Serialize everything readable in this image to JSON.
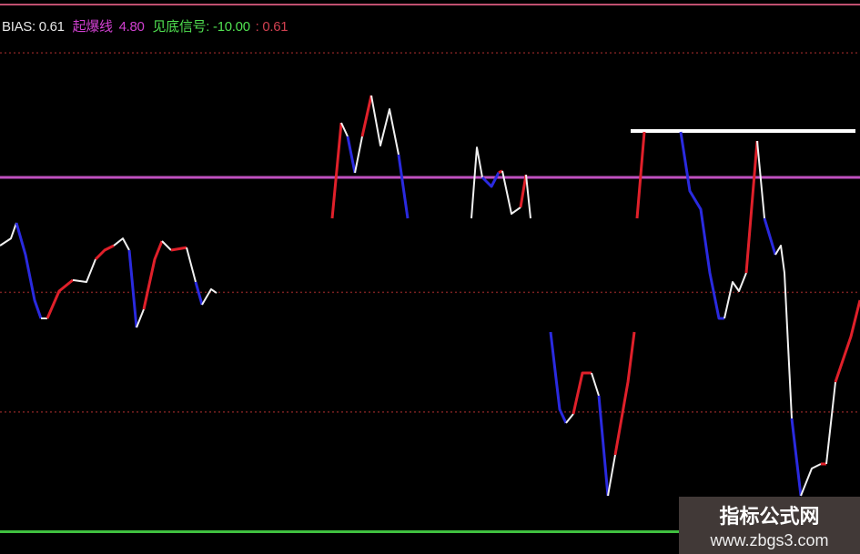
{
  "legend": {
    "bias_label": "BIAS: 0.61",
    "line1_label": "起爆线",
    "line1_value": "4.80",
    "line2_label": "见底信号:",
    "line2_value": "-10.00",
    "extra_value": ": 0.61"
  },
  "watermark": {
    "title": "指标公式网",
    "url": "www.zbgs3.com"
  },
  "colors": {
    "up": "#e0202a",
    "down": "#2a2adf",
    "flat": "#f0f0f0",
    "line1": "#c050c0",
    "line2": "#40c040",
    "grid": "#7a2020",
    "header": "#c05070",
    "bias_text": "#e8e8e8",
    "line1_text": "#d040d0",
    "line2_text": "#50e050",
    "extra_text": "#d04050"
  },
  "chart_data": {
    "type": "line",
    "title": "",
    "xlabel": "",
    "ylabel": "",
    "ylim": [
      -10.3,
      10.6
    ],
    "grid": true,
    "grid_levels": [
      10,
      0,
      -5
    ],
    "reference_lines": [
      {
        "name": "起爆线",
        "value": 4.8,
        "color": "purple"
      },
      {
        "name": "见底信号",
        "value": -10,
        "color": "green"
      }
    ],
    "extra_hline": {
      "value": 6.74,
      "x_range": [
        138.6,
        188
      ],
      "color": "white"
    },
    "segments": [
      {
        "c": "flat",
        "pts": [
          [
            0,
            1.95
          ],
          [
            2.4,
            2.25
          ],
          [
            3.6,
            2.9
          ]
        ]
      },
      {
        "c": "down",
        "pts": [
          [
            3.6,
            2.9
          ],
          [
            5.6,
            1.57
          ],
          [
            7.6,
            -0.33
          ],
          [
            9,
            -1.09
          ]
        ]
      },
      {
        "c": "flat",
        "pts": [
          [
            9,
            -1.09
          ],
          [
            10.4,
            -1.09
          ]
        ]
      },
      {
        "c": "up",
        "pts": [
          [
            10.4,
            -1.09
          ],
          [
            13,
            0.05
          ],
          [
            16,
            0.51
          ]
        ]
      },
      {
        "c": "flat",
        "pts": [
          [
            16,
            0.51
          ],
          [
            19,
            0.43
          ],
          [
            21,
            1.38
          ]
        ]
      },
      {
        "c": "up",
        "pts": [
          [
            21,
            1.38
          ],
          [
            23,
            1.76
          ],
          [
            25,
            1.95
          ]
        ]
      },
      {
        "c": "flat",
        "pts": [
          [
            25,
            1.95
          ],
          [
            27,
            2.25
          ],
          [
            28.4,
            1.76
          ]
        ]
      },
      {
        "c": "down",
        "pts": [
          [
            28.4,
            1.76
          ],
          [
            30,
            -1.47
          ]
        ]
      },
      {
        "c": "flat",
        "pts": [
          [
            30,
            -1.47
          ],
          [
            31.6,
            -0.71
          ]
        ]
      },
      {
        "c": "up",
        "pts": [
          [
            31.6,
            -0.71
          ],
          [
            34,
            1.38
          ],
          [
            35.6,
            2.14
          ]
        ]
      },
      {
        "c": "flat",
        "pts": [
          [
            35.6,
            2.14
          ],
          [
            37.6,
            1.76
          ]
        ]
      },
      {
        "c": "up",
        "pts": [
          [
            37.6,
            1.76
          ],
          [
            41,
            1.87
          ]
        ]
      },
      {
        "c": "flat",
        "pts": [
          [
            41,
            1.87
          ],
          [
            43,
            0.43
          ]
        ]
      },
      {
        "c": "down",
        "pts": [
          [
            43,
            0.43
          ],
          [
            44.4,
            -0.52
          ]
        ]
      },
      {
        "c": "flat",
        "pts": [
          [
            44.4,
            -0.52
          ],
          [
            46.4,
            0.13
          ],
          [
            47.6,
            -0.03
          ]
        ]
      },
      {
        "c": "up",
        "pts": [
          [
            73,
            3.09
          ],
          [
            75,
            7.08
          ]
        ]
      },
      {
        "c": "flat",
        "pts": [
          [
            75,
            7.08
          ],
          [
            76.4,
            6.51
          ]
        ]
      },
      {
        "c": "down",
        "pts": [
          [
            76.4,
            6.51
          ],
          [
            78,
            4.99
          ]
        ]
      },
      {
        "c": "flat",
        "pts": [
          [
            78,
            4.99
          ],
          [
            79.6,
            6.51
          ]
        ]
      },
      {
        "c": "up",
        "pts": [
          [
            79.6,
            6.51
          ],
          [
            81.6,
            8.22
          ]
        ]
      },
      {
        "c": "flat",
        "pts": [
          [
            81.6,
            8.22
          ],
          [
            83.6,
            6.13
          ],
          [
            85.6,
            7.65
          ],
          [
            87.6,
            5.75
          ]
        ]
      },
      {
        "c": "down",
        "pts": [
          [
            87.6,
            5.75
          ],
          [
            89.6,
            3.09
          ]
        ]
      },
      {
        "c": "flat",
        "pts": [
          [
            103.6,
            3.09
          ],
          [
            104.8,
            6.05
          ],
          [
            106,
            4.8
          ]
        ]
      },
      {
        "c": "down",
        "pts": [
          [
            106,
            4.8
          ],
          [
            108,
            4.42
          ],
          [
            109.6,
            5.0
          ]
        ]
      },
      {
        "c": "up",
        "pts": [
          [
            109.6,
            5.0
          ],
          [
            110.4,
            5.07
          ]
        ]
      },
      {
        "c": "flat",
        "pts": [
          [
            110.4,
            5.07
          ],
          [
            112.4,
            3.28
          ],
          [
            114.4,
            3.55
          ]
        ]
      },
      {
        "c": "up",
        "pts": [
          [
            114.4,
            3.55
          ],
          [
            115.6,
            4.91
          ]
        ]
      },
      {
        "c": "flat",
        "pts": [
          [
            115.6,
            4.91
          ],
          [
            116.6,
            3.09
          ]
        ]
      },
      {
        "c": "down",
        "pts": [
          [
            121,
            -1.66
          ],
          [
            123,
            -4.89
          ],
          [
            124.4,
            -5.46
          ]
        ]
      },
      {
        "c": "flat",
        "pts": [
          [
            124.4,
            -5.46
          ],
          [
            126,
            -5.08
          ]
        ]
      },
      {
        "c": "up",
        "pts": [
          [
            126,
            -5.08
          ],
          [
            128,
            -3.37
          ],
          [
            130,
            -3.37
          ]
        ]
      },
      {
        "c": "flat",
        "pts": [
          [
            130,
            -3.37
          ],
          [
            131.6,
            -4.32
          ]
        ]
      },
      {
        "c": "down",
        "pts": [
          [
            131.6,
            -4.32
          ],
          [
            133.6,
            -8.5
          ]
        ]
      },
      {
        "c": "flat",
        "pts": [
          [
            133.6,
            -8.5
          ],
          [
            135.2,
            -6.79
          ]
        ]
      },
      {
        "c": "up",
        "pts": [
          [
            135.2,
            -6.79
          ],
          [
            138,
            -3.75
          ],
          [
            139.4,
            -1.66
          ]
        ]
      },
      {
        "c": "up",
        "pts": [
          [
            140,
            3.09
          ],
          [
            141.6,
            6.7
          ]
        ]
      },
      {
        "c": "down",
        "pts": [
          [
            149.6,
            6.7
          ],
          [
            151.6,
            4.23
          ],
          [
            154,
            3.47
          ],
          [
            156,
            0.81
          ],
          [
            158,
            -1.09
          ],
          [
            159.2,
            -1.09
          ]
        ]
      },
      {
        "c": "flat",
        "pts": [
          [
            159.2,
            -1.09
          ],
          [
            161,
            0.43
          ],
          [
            162.4,
            0.05
          ],
          [
            164,
            0.81
          ]
        ]
      },
      {
        "c": "up",
        "pts": [
          [
            164,
            0.81
          ],
          [
            166.4,
            6.32
          ]
        ]
      },
      {
        "c": "flat",
        "pts": [
          [
            166.4,
            6.32
          ],
          [
            168,
            3.09
          ]
        ]
      },
      {
        "c": "down",
        "pts": [
          [
            168,
            3.09
          ],
          [
            170.4,
            1.57
          ]
        ]
      },
      {
        "c": "flat",
        "pts": [
          [
            170.4,
            1.57
          ],
          [
            171.6,
            1.95
          ],
          [
            172.4,
            0.81
          ],
          [
            174,
            -5.27
          ]
        ]
      },
      {
        "c": "down",
        "pts": [
          [
            174,
            -5.27
          ],
          [
            176,
            -8.5
          ]
        ]
      },
      {
        "c": "flat",
        "pts": [
          [
            176,
            -8.5
          ],
          [
            178.4,
            -7.36
          ],
          [
            180.4,
            -7.17
          ]
        ]
      },
      {
        "c": "up",
        "pts": [
          [
            180.4,
            -7.17
          ],
          [
            181.6,
            -7.17
          ]
        ]
      },
      {
        "c": "flat",
        "pts": [
          [
            181.6,
            -7.17
          ],
          [
            183.6,
            -3.75
          ]
        ]
      },
      {
        "c": "up",
        "pts": [
          [
            183.6,
            -3.75
          ],
          [
            187,
            -1.85
          ],
          [
            189,
            -0.33
          ]
        ]
      }
    ]
  }
}
